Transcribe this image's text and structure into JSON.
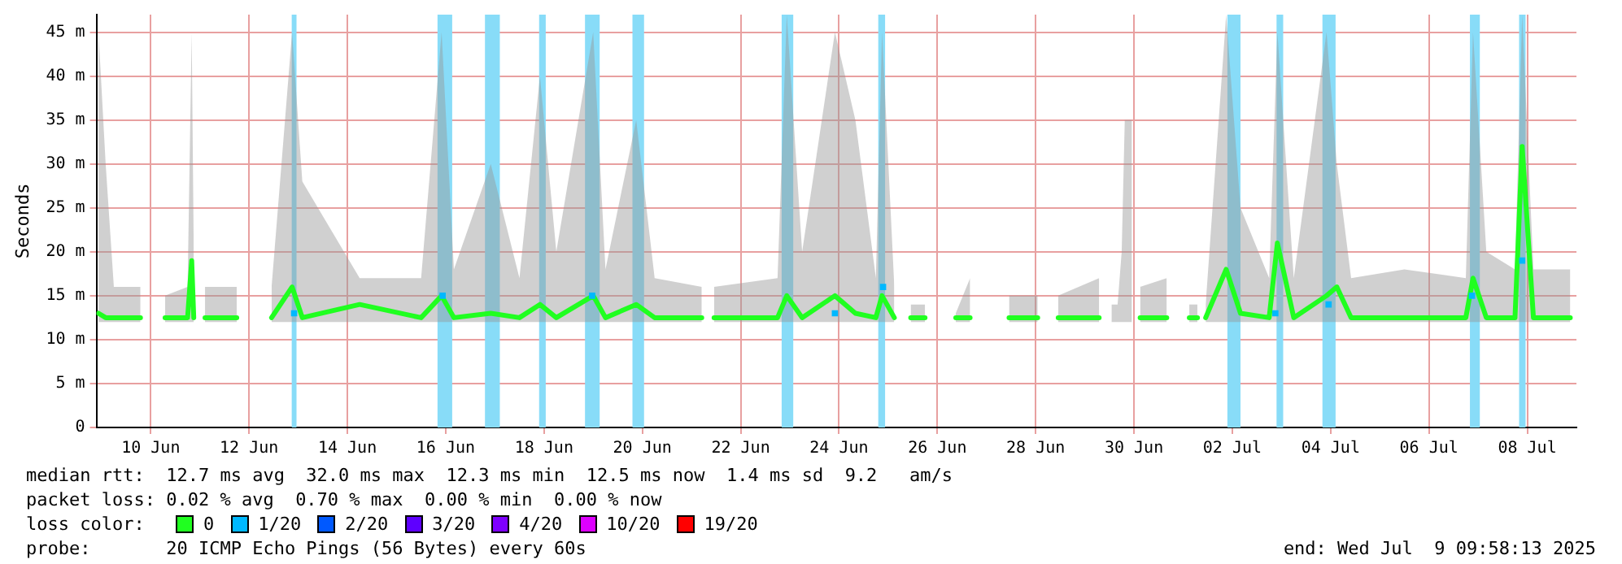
{
  "chart_data": {
    "type": "line",
    "ylabel": "Seconds",
    "xlim": [
      "2025-06-08T21:30",
      "2025-07-09T00:00"
    ],
    "xticks": [
      {
        "value": "2025-06-10",
        "label": "10 Jun"
      },
      {
        "value": "2025-06-12",
        "label": "12 Jun"
      },
      {
        "value": "2025-06-14",
        "label": "14 Jun"
      },
      {
        "value": "2025-06-16",
        "label": "16 Jun"
      },
      {
        "value": "2025-06-18",
        "label": "18 Jun"
      },
      {
        "value": "2025-06-20",
        "label": "20 Jun"
      },
      {
        "value": "2025-06-22",
        "label": "22 Jun"
      },
      {
        "value": "2025-06-24",
        "label": "24 Jun"
      },
      {
        "value": "2025-06-26",
        "label": "26 Jun"
      },
      {
        "value": "2025-06-28",
        "label": "28 Jun"
      },
      {
        "value": "2025-06-30",
        "label": "30 Jun"
      },
      {
        "value": "2025-07-02",
        "label": "02 Jul"
      },
      {
        "value": "2025-07-04",
        "label": "04 Jul"
      },
      {
        "value": "2025-07-06",
        "label": "06 Jul"
      },
      {
        "value": "2025-07-08",
        "label": "08 Jul"
      }
    ],
    "ylim": [
      0,
      47
    ],
    "yticks": [
      0,
      {
        "value": 5,
        "label": "5 m"
      },
      {
        "value": 10,
        "label": "10 m"
      },
      {
        "value": 15,
        "label": "15 m"
      },
      {
        "value": 20,
        "label": "20 m"
      },
      {
        "value": 25,
        "label": "25 m"
      },
      {
        "value": 30,
        "label": "30 m"
      },
      {
        "value": 35,
        "label": "35 m"
      },
      {
        "value": 40,
        "label": "40 m"
      },
      {
        "value": 45,
        "label": "45 m"
      }
    ],
    "grid": true,
    "legend": "bottom",
    "legend_title": "loss color:",
    "series": [
      {
        "name": "0",
        "color": "#20ff20",
        "x": [
          "2025-06-08T22:30",
          "2025-06-09T02:00",
          "2025-06-09T06:00",
          "2025-06-09T19:00",
          "2025-06-10T02:00",
          "2025-06-10T07:00",
          "2025-06-10T18:00",
          "2025-06-10T20:00",
          "2025-06-10T21:00",
          "2025-06-11T00:00",
          "2025-06-11T02:30",
          "2025-06-11T18:00",
          "2025-06-12T04:00",
          "2025-06-12T11:00",
          "2025-06-12T21:00",
          "2025-06-13T02:00",
          "2025-06-14T06:00",
          "2025-06-15T12:00",
          "2025-06-15T22:00",
          "2025-06-16T04:00",
          "2025-06-16T22:00",
          "2025-06-17T12:00",
          "2025-06-17T22:00",
          "2025-06-18T06:00",
          "2025-06-19T00:00",
          "2025-06-19T06:00",
          "2025-06-19T21:00",
          "2025-06-20T06:00",
          "2025-06-21T05:00",
          "2025-06-21T09:00",
          "2025-06-21T11:00",
          "2025-06-22T18:00",
          "2025-06-22T22:30",
          "2025-06-23T06:00",
          "2025-06-23T22:00",
          "2025-06-24T08:00",
          "2025-06-24T18:00",
          "2025-06-24T21:00",
          "2025-06-25T03:00",
          "2025-06-25T08:00",
          "2025-06-25T11:00",
          "2025-06-25T18:00",
          "2025-06-26T05:00",
          "2025-06-26T09:00",
          "2025-06-26T16:00",
          "2025-06-27T00:00",
          "2025-06-27T11:00",
          "2025-06-28T01:00",
          "2025-06-28T06:00",
          "2025-06-28T11:00",
          "2025-06-29T07:00",
          "2025-06-29T10:00",
          "2025-06-29T13:00",
          "2025-06-29T16:00",
          "2025-06-29T18:00",
          "2025-06-29T19:30",
          "2025-06-29T23:00",
          "2025-06-30T01:00",
          "2025-06-30T03:00",
          "2025-06-30T16:00",
          "2025-07-01T00:00",
          "2025-07-01T03:00",
          "2025-07-01T07:00",
          "2025-07-01T09:00",
          "2025-07-01T11:00",
          "2025-07-01T21:00",
          "2025-07-02T04:00",
          "2025-07-02T18:00",
          "2025-07-02T22:00",
          "2025-07-03T06:00",
          "2025-07-03T22:00",
          "2025-07-04T03:00",
          "2025-07-04T10:00",
          "2025-07-05T12:00",
          "2025-07-06T18:00",
          "2025-07-06T21:30",
          "2025-07-07T04:00",
          "2025-07-07T18:00",
          "2025-07-07T21:30",
          "2025-07-08T03:00",
          "2025-07-08T21:00"
        ],
        "values": [
          13,
          12.5,
          12.5,
          12.5,
          null,
          12.5,
          12.5,
          19,
          12.5,
          null,
          12.5,
          12.5,
          null,
          12.5,
          16,
          12.5,
          14,
          12.5,
          15,
          12.5,
          13,
          12.5,
          14,
          12.5,
          15,
          12.5,
          14,
          12.5,
          12.5,
          null,
          12.5,
          12.5,
          15,
          12.5,
          15,
          13,
          12.5,
          15,
          12.5,
          null,
          12.5,
          12.5,
          null,
          12.5,
          12.5,
          null,
          12.5,
          12.5,
          null,
          12.5,
          12.5,
          null,
          null,
          null,
          null,
          null,
          null,
          null,
          12.5,
          12.5,
          null,
          12.5,
          12.5,
          null,
          12.5,
          18,
          13,
          12.5,
          21,
          12.5,
          15,
          16,
          12.5,
          12.5,
          12.5,
          17,
          12.5,
          12.5,
          32,
          12.5,
          12.5
        ],
        "lower": [
          12,
          12,
          12,
          12,
          null,
          12,
          12,
          12,
          12,
          null,
          12,
          12,
          null,
          12,
          12,
          12,
          12,
          12,
          12,
          12,
          12,
          12,
          12,
          12,
          12,
          12,
          12,
          12,
          12,
          null,
          12,
          12,
          12,
          12,
          12,
          12,
          12,
          12,
          12,
          null,
          12,
          12,
          null,
          12,
          12,
          null,
          12,
          12,
          null,
          12,
          12,
          null,
          12,
          12,
          12,
          12,
          12,
          null,
          12,
          12,
          null,
          12,
          12,
          null,
          12,
          12,
          12,
          12,
          12,
          12,
          12,
          12,
          12,
          12,
          12,
          12,
          12,
          12,
          12,
          12,
          12
        ],
        "upper": [
          45,
          30,
          16,
          16,
          null,
          15,
          16,
          45,
          20,
          null,
          16,
          16,
          null,
          16,
          45,
          28,
          17,
          17,
          45,
          18,
          30,
          17,
          40,
          20,
          45,
          18,
          35,
          17,
          16,
          null,
          16,
          17,
          47,
          20,
          45,
          35,
          17,
          45,
          16,
          null,
          14,
          14,
          null,
          13,
          17,
          null,
          15,
          15,
          null,
          15,
          17,
          null,
          14,
          14,
          20,
          35,
          35,
          null,
          16,
          17,
          null,
          14,
          14,
          null,
          14,
          47,
          25,
          17,
          45,
          17,
          45,
          30,
          17,
          18,
          17,
          45,
          20,
          18,
          47,
          18,
          18
        ]
      },
      {
        "name": "1/20",
        "color": "#00b8ff",
        "type": "scatter",
        "x": [
          "2025-06-12T22:00",
          "2025-06-15T22:30",
          "2025-06-18T23:30",
          "2025-06-23T22:00",
          "2025-06-24T21:30",
          "2025-07-02T21:00",
          "2025-07-03T23:00",
          "2025-07-06T21:00",
          "2025-07-07T21:30"
        ],
        "values": [
          13,
          15,
          15,
          13,
          16,
          13,
          14,
          15,
          19
        ]
      },
      {
        "name": "2/20",
        "color": "#0059ff"
      },
      {
        "name": "3/20",
        "color": "#5e00ff"
      },
      {
        "name": "4/20",
        "color": "#7e00ff"
      },
      {
        "name": "10/20",
        "color": "#dd00ff"
      },
      {
        "name": "19/20",
        "color": "#ff0000"
      }
    ],
    "bands": [
      {
        "axis": "x",
        "from": "2025-06-12T20:50",
        "to": "2025-06-12T23:10",
        "color": "#88dcf8"
      },
      {
        "axis": "x",
        "from": "2025-06-15T20:00",
        "to": "2025-06-16T03:10",
        "color": "#88dcf8"
      },
      {
        "axis": "x",
        "from": "2025-06-16T19:10",
        "to": "2025-06-17T02:25",
        "color": "#88dcf8"
      },
      {
        "axis": "x",
        "from": "2025-06-17T21:36",
        "to": "2025-06-18T00:50",
        "color": "#88dcf8"
      },
      {
        "axis": "x",
        "from": "2025-06-18T20:00",
        "to": "2025-06-19T03:10",
        "color": "#88dcf8"
      },
      {
        "axis": "x",
        "from": "2025-06-19T19:10",
        "to": "2025-06-20T00:50",
        "color": "#88dcf8"
      },
      {
        "axis": "x",
        "from": "2025-06-22T20:00",
        "to": "2025-06-23T01:40",
        "color": "#88dcf8"
      },
      {
        "axis": "x",
        "from": "2025-06-24T19:10",
        "to": "2025-06-24T22:30",
        "color": "#88dcf8"
      },
      {
        "axis": "x",
        "from": "2025-07-01T21:36",
        "to": "2025-07-02T04:00",
        "color": "#88dcf8"
      },
      {
        "axis": "x",
        "from": "2025-07-02T21:36",
        "to": "2025-07-03T00:50",
        "color": "#88dcf8"
      },
      {
        "axis": "x",
        "from": "2025-07-03T20:00",
        "to": "2025-07-04T02:25",
        "color": "#88dcf8"
      },
      {
        "axis": "x",
        "from": "2025-07-06T20:00",
        "to": "2025-07-07T00:50",
        "color": "#88dcf8"
      },
      {
        "axis": "x",
        "from": "2025-07-07T20:00",
        "to": "2025-07-07T23:10",
        "color": "#88dcf8"
      }
    ],
    "annotations": [
      "median rtt:  12.7 ms avg  32.0 ms max  12.3 ms min  12.5 ms now  1.4 ms sd  9.2   am/s",
      "packet loss: 0.02 % avg  0.70 % max  0.00 % min  0.00 % now",
      "probe:       20 ICMP Echo Pings (56 Bytes) every 60s",
      "end: Wed Jul  9 09:58:13 2025"
    ]
  }
}
